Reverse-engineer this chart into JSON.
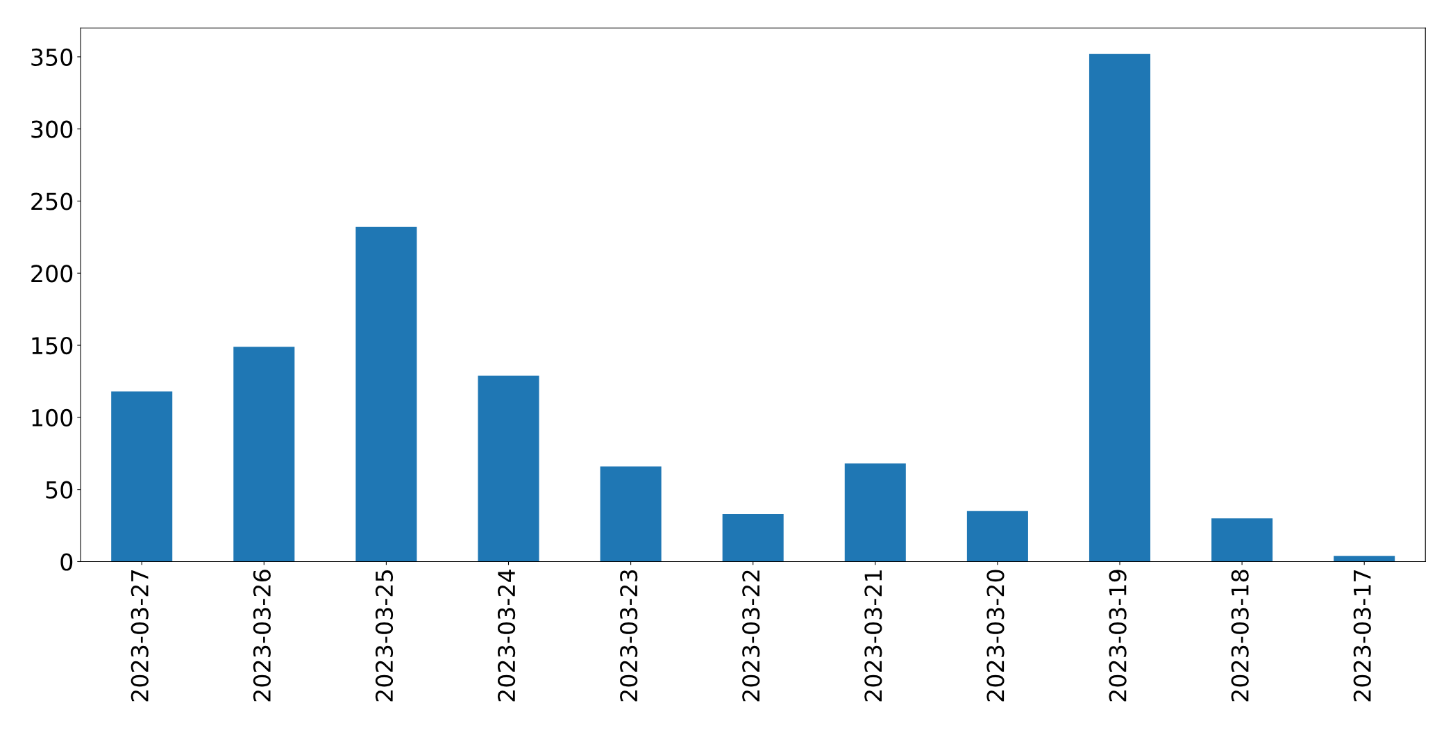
{
  "chart_data": {
    "type": "bar",
    "categories": [
      "2023-03-27",
      "2023-03-26",
      "2023-03-25",
      "2023-03-24",
      "2023-03-23",
      "2023-03-22",
      "2023-03-21",
      "2023-03-20",
      "2023-03-19",
      "2023-03-18",
      "2023-03-17"
    ],
    "values": [
      118,
      149,
      232,
      129,
      66,
      33,
      68,
      35,
      352,
      30,
      4
    ],
    "color": "#1f77b4",
    "ylim": [
      0,
      370
    ],
    "yticks": [
      0,
      50,
      100,
      150,
      200,
      250,
      300,
      350
    ],
    "grid": false
  }
}
